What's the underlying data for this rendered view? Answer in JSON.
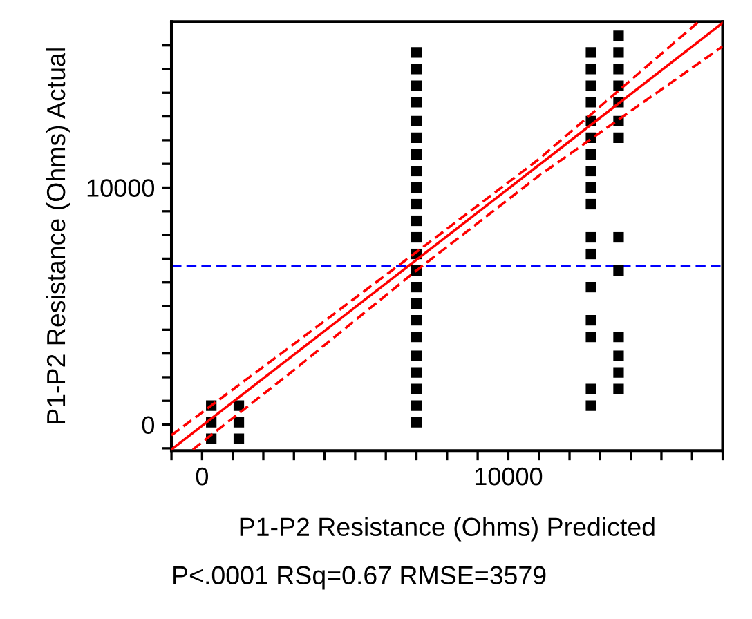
{
  "chart_data": {
    "type": "scatter",
    "xlabel": "P1-P2 Resistance (Ohms) Predicted",
    "ylabel": "P1-P2 Resistance (Ohms) Actual",
    "annotations": [
      "P<.0001 RSq=0.67 RMSE=3579"
    ],
    "series": [
      {
        "color": "#000000",
        "marker": "square",
        "x": [
          300,
          300,
          300,
          1200,
          1200,
          1200,
          7000,
          7000,
          7000,
          7000,
          7000,
          7000,
          7000,
          7000,
          7000,
          7000,
          7000,
          7000,
          7000,
          7000,
          7000,
          7000,
          7000,
          7000,
          7000,
          7000,
          7000,
          7000,
          7000,
          12700,
          12700,
          12700,
          12700,
          12700,
          12700,
          12700,
          12700,
          12700,
          12700,
          12700,
          12700,
          12700,
          12700,
          12700,
          12700,
          12700,
          13600,
          13600,
          13600,
          13600,
          13600,
          13600,
          13600,
          13600,
          13600,
          13600,
          13600,
          13600,
          13600
        ],
        "values": [
          800,
          100,
          -600,
          800,
          100,
          -600,
          15700,
          15000,
          14300,
          13600,
          12800,
          12100,
          11400,
          10700,
          10000,
          9300,
          8600,
          7900,
          7200,
          6500,
          5800,
          5100,
          4400,
          3700,
          2900,
          2200,
          1500,
          800,
          100,
          15700,
          15000,
          14300,
          13600,
          12800,
          12100,
          11400,
          10700,
          10000,
          9300,
          7900,
          7200,
          5800,
          4400,
          3700,
          1500,
          800,
          16400,
          15700,
          15000,
          14300,
          13600,
          12800,
          12100,
          7900,
          6500,
          3700,
          2900,
          2200,
          1500
        ]
      },
      {
        "type": "line",
        "color": "#ff0000",
        "line_style": "solid",
        "x": [
          -1000,
          17000
        ],
        "values": [
          -1050,
          16950
        ]
      },
      {
        "type": "line",
        "color": "#ff0000",
        "line_style": "dashed",
        "x": [
          -1000,
          3000,
          7000,
          11000,
          16200
        ],
        "values": [
          -450,
          3400,
          7280,
          11200,
          16980
        ]
      },
      {
        "type": "line",
        "color": "#ff0000",
        "line_style": "dashed",
        "x": [
          -300,
          3000,
          7000,
          11000,
          17000
        ],
        "values": [
          -1050,
          2300,
          6500,
          10500,
          15960
        ]
      }
    ],
    "ref_lines": [
      {
        "axis": "y",
        "value": 6700,
        "color": "#0000ff",
        "line_style": "dashed"
      }
    ],
    "xlim": [
      -1000,
      17000
    ],
    "ylim": [
      -1100,
      17000
    ],
    "xticks": [
      {
        "value": -1000,
        "label": null
      },
      0,
      {
        "value": 1000,
        "label": null
      },
      {
        "value": 2000,
        "label": null
      },
      {
        "value": 3000,
        "label": null
      },
      {
        "value": 4000,
        "label": null
      },
      {
        "value": 5000,
        "label": null
      },
      {
        "value": 6000,
        "label": null
      },
      {
        "value": 7000,
        "label": null
      },
      {
        "value": 8000,
        "label": null
      },
      {
        "value": 9000,
        "label": null
      },
      10000,
      {
        "value": 11000,
        "label": null
      },
      {
        "value": 12000,
        "label": null
      },
      {
        "value": 13000,
        "label": null
      },
      {
        "value": 14000,
        "label": null
      },
      {
        "value": 15000,
        "label": null
      },
      {
        "value": 16000,
        "label": null
      },
      {
        "value": 17000,
        "label": null
      }
    ],
    "yticks": [
      {
        "value": -1000,
        "label": null
      },
      0,
      {
        "value": 1000,
        "label": null
      },
      {
        "value": 2000,
        "label": null
      },
      {
        "value": 3000,
        "label": null
      },
      {
        "value": 4000,
        "label": null
      },
      {
        "value": 5000,
        "label": null
      },
      {
        "value": 6000,
        "label": null
      },
      {
        "value": 7000,
        "label": null
      },
      {
        "value": 8000,
        "label": null
      },
      {
        "value": 9000,
        "label": null
      },
      10000,
      {
        "value": 11000,
        "label": null
      },
      {
        "value": 12000,
        "label": null
      },
      {
        "value": 13000,
        "label": null
      },
      {
        "value": 14000,
        "label": null
      },
      {
        "value": 15000,
        "label": null
      },
      {
        "value": 16000,
        "label": null
      }
    ],
    "grid": false,
    "legend": false
  }
}
